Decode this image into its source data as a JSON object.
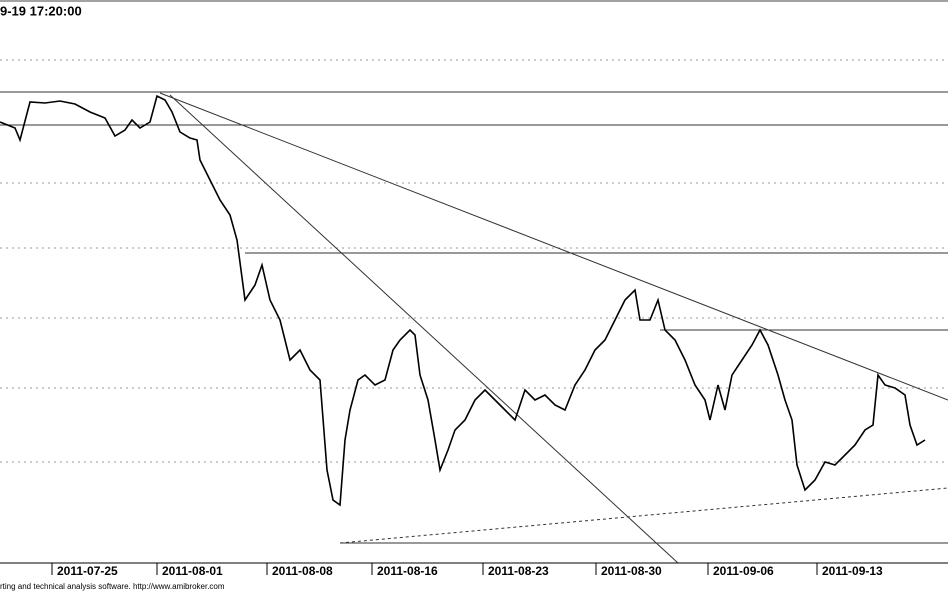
{
  "chart_data": {
    "type": "line",
    "title": "9-19 17:20:00",
    "footer": "rting and technical analysis software. http://www.amibroker.com",
    "xlim": [
      0,
      948
    ],
    "ylim": [
      0,
      593
    ],
    "xticks": [
      {
        "value": 52,
        "label": "2011-07-25"
      },
      {
        "value": 157,
        "label": "2011-08-01"
      },
      {
        "value": 267,
        "label": "2011-08-08"
      },
      {
        "value": 372,
        "label": "2011-08-16"
      },
      {
        "value": 483,
        "label": "2011-08-23"
      },
      {
        "value": 596,
        "label": "2011-08-30"
      },
      {
        "value": 708,
        "label": "2011-09-06"
      },
      {
        "value": 817,
        "label": "2011-09-13"
      }
    ],
    "grid_levels": [
      533,
      410,
      345,
      275,
      205,
      131
    ],
    "levels": [
      {
        "y": 501,
        "from": 0
      },
      {
        "y": 468,
        "from": 0
      },
      {
        "y": 340,
        "from": 245
      },
      {
        "y": 263,
        "from": 660
      },
      {
        "y": 50,
        "from": 340
      }
    ],
    "trendlines": [
      {
        "x1": 160,
        "y1": 500,
        "x2": 948,
        "y2": 193,
        "dashed": false
      },
      {
        "x1": 170,
        "y1": 498,
        "x2": 678,
        "y2": 30,
        "dashed": false
      },
      {
        "x1": 340,
        "y1": 50,
        "x2": 948,
        "y2": 105,
        "dashed": true
      }
    ],
    "series": [
      {
        "color": "#000000",
        "x": [
          0,
          15,
          20,
          30,
          45,
          60,
          75,
          90,
          105,
          115,
          125,
          132,
          140,
          150,
          157,
          165,
          172,
          180,
          190,
          197,
          200,
          210,
          220,
          230,
          237,
          245,
          255,
          262,
          270,
          280,
          290,
          300,
          310,
          320,
          327,
          333,
          340,
          345,
          350,
          358,
          365,
          375,
          385,
          393,
          400,
          410,
          415,
          420,
          428,
          435,
          440,
          448,
          455,
          465,
          475,
          485,
          495,
          505,
          515,
          525,
          535,
          545,
          555,
          565,
          575,
          585,
          595,
          605,
          615,
          625,
          635,
          640,
          650,
          658,
          665,
          675,
          685,
          695,
          705,
          710,
          718,
          725,
          732,
          742,
          752,
          760,
          768,
          778,
          785,
          792,
          797,
          805,
          815,
          825,
          835,
          845,
          855,
          865,
          873,
          878,
          885,
          895,
          905,
          910,
          917,
          925
        ],
        "values": [
          471,
          465,
          453,
          491,
          490,
          492,
          489,
          481,
          475,
          457,
          463,
          473,
          465,
          471,
          497,
          493,
          481,
          461,
          455,
          453,
          433,
          413,
          393,
          378,
          353,
          293,
          308,
          328,
          293,
          273,
          233,
          243,
          223,
          213,
          123,
          93,
          88,
          153,
          183,
          213,
          218,
          208,
          213,
          243,
          253,
          263,
          258,
          218,
          193,
          153,
          123,
          143,
          163,
          173,
          193,
          203,
          193,
          183,
          173,
          203,
          193,
          198,
          188,
          183,
          208,
          223,
          243,
          253,
          273,
          293,
          303,
          273,
          273,
          293,
          263,
          253,
          233,
          208,
          193,
          173,
          208,
          183,
          218,
          233,
          248,
          263,
          248,
          218,
          193,
          173,
          128,
          103,
          113,
          131,
          128,
          138,
          148,
          163,
          168,
          218,
          208,
          205,
          198,
          168,
          148,
          153
        ]
      }
    ]
  }
}
